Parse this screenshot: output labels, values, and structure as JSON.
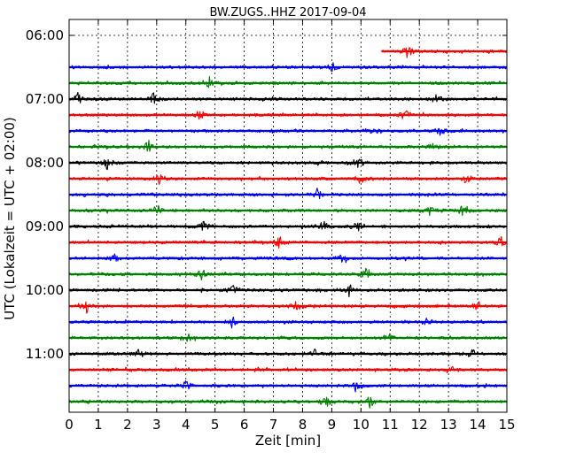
{
  "chart_data": {
    "type": "line",
    "title": "BW.ZUGS..HHZ 2017-09-04",
    "xlabel": "Zeit  [min]",
    "ylabel": "UTC (Lokalzeit = UTC + 02:00)",
    "xlim": [
      0,
      15
    ],
    "x_ticks": [
      "0",
      "1",
      "2",
      "3",
      "4",
      "5",
      "6",
      "7",
      "8",
      "9",
      "10",
      "11",
      "12",
      "13",
      "14",
      "15"
    ],
    "y_ticks": [
      "06:00",
      "07:00",
      "08:00",
      "09:00",
      "10:00",
      "11:00"
    ],
    "grid": true,
    "colors": [
      "#0000ff",
      "#008000",
      "#000000",
      "#ff0000"
    ],
    "traces": [
      {
        "time": "06:15",
        "color": "#ff0000",
        "start_min": 10.7,
        "end_min": 15,
        "events": [
          11.6
        ]
      },
      {
        "time": "06:30",
        "color": "#0000ff",
        "start_min": 0,
        "end_min": 15,
        "events": [
          9.0
        ]
      },
      {
        "time": "06:45",
        "color": "#008000",
        "start_min": 0,
        "end_min": 15,
        "events": [
          4.8
        ]
      },
      {
        "time": "07:00",
        "color": "#000000",
        "start_min": 0,
        "end_min": 15,
        "events": [
          0.3,
          2.9,
          12.6
        ]
      },
      {
        "time": "07:15",
        "color": "#ff0000",
        "start_min": 0,
        "end_min": 15,
        "events": [
          4.5,
          11.5
        ]
      },
      {
        "time": "07:30",
        "color": "#0000ff",
        "start_min": 0,
        "end_min": 15,
        "events": [
          10.3,
          12.7
        ]
      },
      {
        "time": "07:45",
        "color": "#008000",
        "start_min": 0,
        "end_min": 15,
        "events": [
          2.7,
          12.5
        ]
      },
      {
        "time": "08:00",
        "color": "#000000",
        "start_min": 0,
        "end_min": 15,
        "events": [
          1.3,
          9.9
        ]
      },
      {
        "time": "08:15",
        "color": "#ff0000",
        "start_min": 0,
        "end_min": 15,
        "events": [
          3.1,
          10.0,
          13.6
        ]
      },
      {
        "time": "08:30",
        "color": "#0000ff",
        "start_min": 0,
        "end_min": 15,
        "events": [
          8.5
        ]
      },
      {
        "time": "08:45",
        "color": "#008000",
        "start_min": 0,
        "end_min": 15,
        "events": [
          3.0,
          12.4,
          13.5
        ]
      },
      {
        "time": "09:00",
        "color": "#000000",
        "start_min": 0,
        "end_min": 15,
        "events": [
          4.6,
          8.7,
          9.9
        ]
      },
      {
        "time": "09:15",
        "color": "#ff0000",
        "start_min": 0,
        "end_min": 15,
        "events": [
          7.2,
          14.8
        ]
      },
      {
        "time": "09:30",
        "color": "#0000ff",
        "start_min": 0,
        "end_min": 15,
        "events": [
          1.6,
          9.4
        ]
      },
      {
        "time": "09:45",
        "color": "#008000",
        "start_min": 0,
        "end_min": 15,
        "events": [
          4.5,
          10.2
        ]
      },
      {
        "time": "10:00",
        "color": "#000000",
        "start_min": 0,
        "end_min": 15,
        "events": [
          5.6,
          9.6
        ]
      },
      {
        "time": "10:15",
        "color": "#ff0000",
        "start_min": 0,
        "end_min": 15,
        "events": [
          0.6,
          7.8,
          14.0
        ]
      },
      {
        "time": "10:30",
        "color": "#0000ff",
        "start_min": 0,
        "end_min": 15,
        "events": [
          5.6,
          12.3
        ]
      },
      {
        "time": "10:45",
        "color": "#008000",
        "start_min": 0,
        "end_min": 15,
        "events": [
          4.1,
          10.9
        ]
      },
      {
        "time": "11:00",
        "color": "#000000",
        "start_min": 0,
        "end_min": 15,
        "events": [
          2.4,
          8.4,
          13.8
        ]
      },
      {
        "time": "11:15",
        "color": "#ff0000",
        "start_min": 0,
        "end_min": 15,
        "events": [
          13.1
        ]
      },
      {
        "time": "11:30",
        "color": "#0000ff",
        "start_min": 0,
        "end_min": 15,
        "events": [
          4.0,
          9.8
        ]
      },
      {
        "time": "11:45",
        "color": "#008000",
        "start_min": 0,
        "end_min": 15,
        "events": [
          8.8,
          10.3
        ]
      }
    ]
  }
}
